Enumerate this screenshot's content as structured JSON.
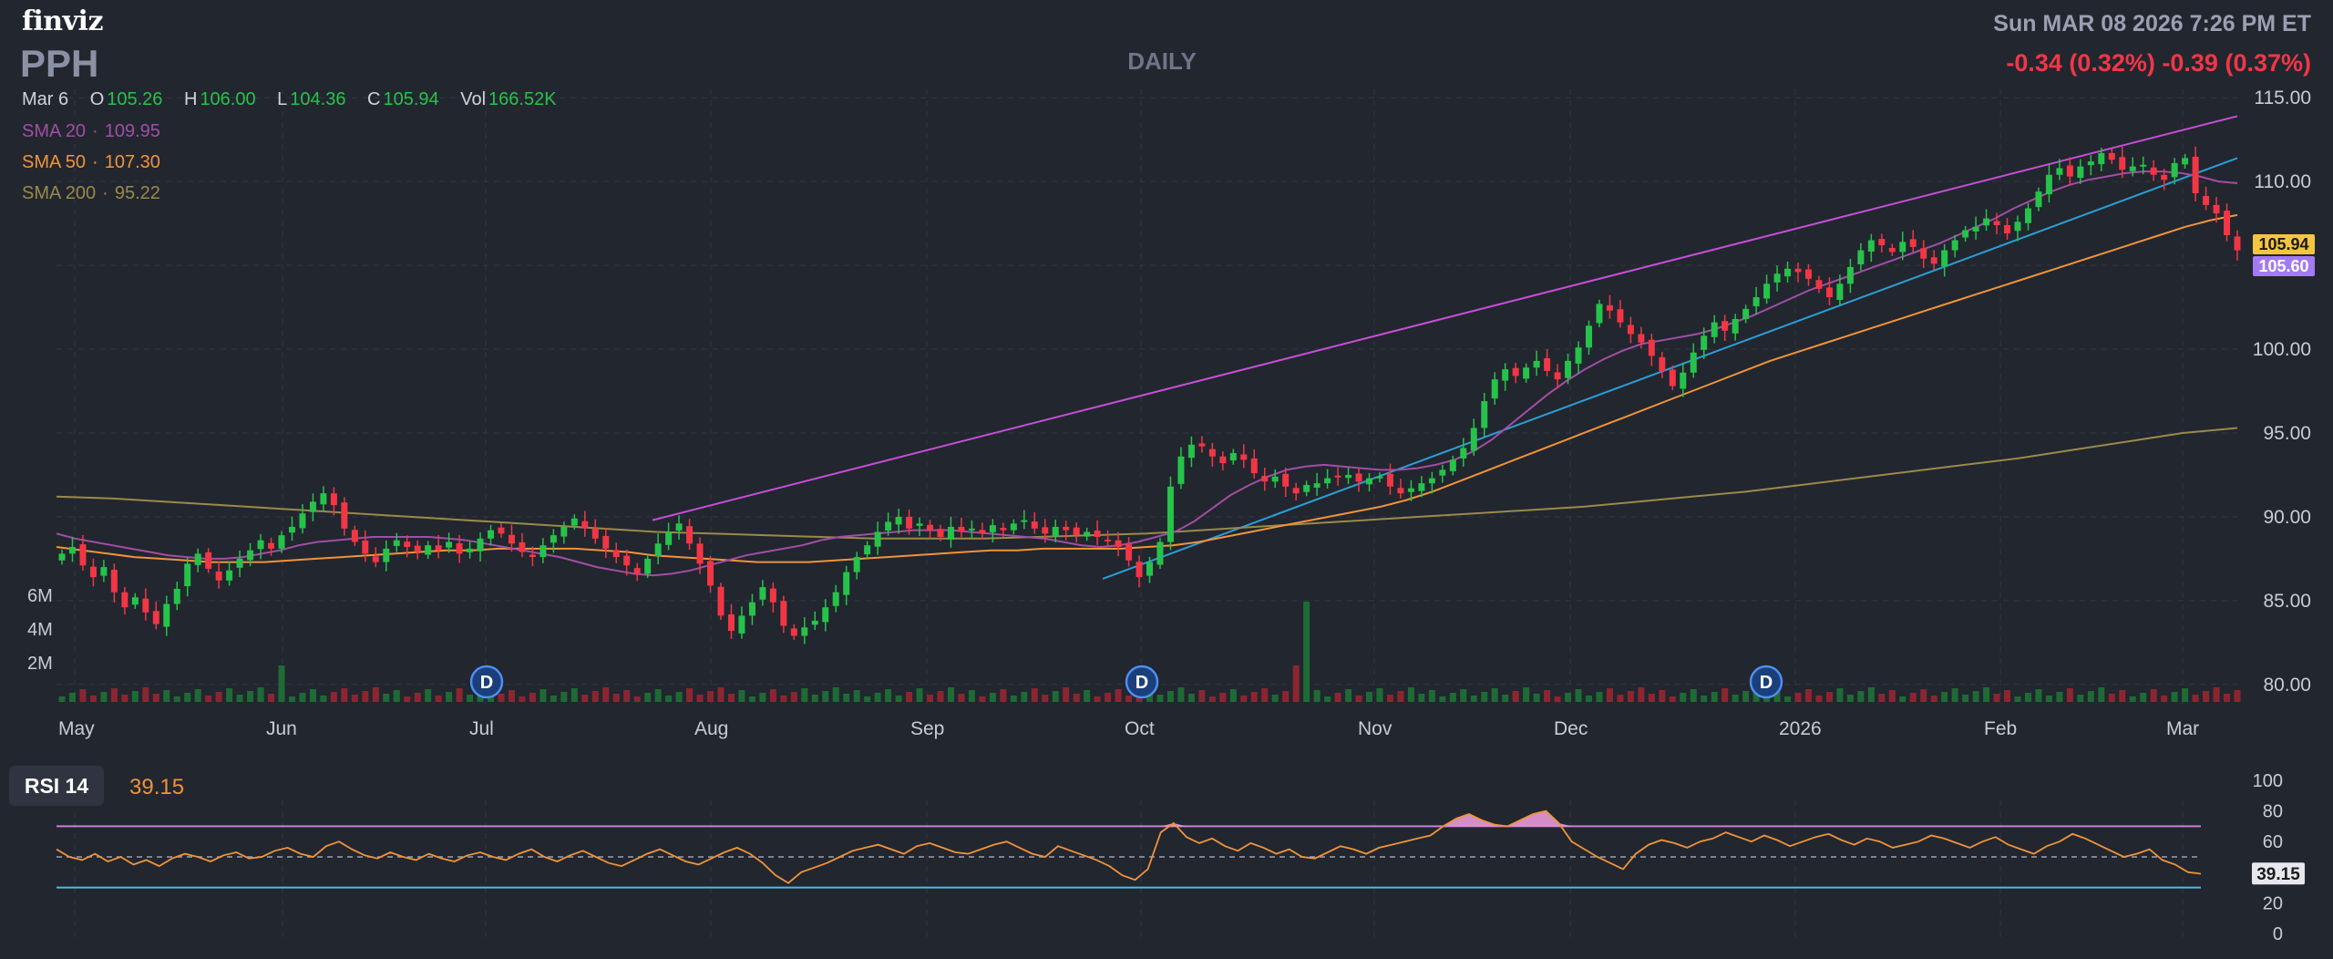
{
  "header": {
    "logo": "finviz",
    "ticker": "PPH",
    "period": "DAILY",
    "datetime": "Sun MAR 08 2026 7:26 PM ET",
    "change": "-0.34 (0.32%)  -0.39 (0.37%)"
  },
  "ohlc": {
    "date": "Mar 6",
    "open_label": "O",
    "open": "105.26",
    "high_label": "H",
    "high": "106.00",
    "low_label": "L",
    "low": "104.36",
    "close_label": "C",
    "close": "105.94",
    "vol_label": "Vol",
    "vol": "166.52K"
  },
  "sma": [
    {
      "label": "SMA 20",
      "value": "109.95",
      "color": "#a14ea6"
    },
    {
      "label": "SMA 50",
      "value": "107.30",
      "color": "#f0943a"
    },
    {
      "label": "SMA 200",
      "value": "95.22",
      "color": "#9a8a4a"
    }
  ],
  "price_tags": {
    "close": "105.94",
    "close_color": "#f5c542",
    "alt": "105.60",
    "alt_color": "#a37af5"
  },
  "volume_ticks": [
    "6M",
    "4M",
    "2M"
  ],
  "dividend_marker": "D",
  "rsi": {
    "label": "RSI 14",
    "value": "39.15",
    "ticks": [
      "100",
      "80",
      "60",
      "40",
      "20",
      "0"
    ],
    "overbought": 70,
    "oversold": 30
  },
  "colors": {
    "up": "#26c34a",
    "down": "#f23645",
    "volume_up": "#1e6b35",
    "volume_down": "#8b2630",
    "trend_upper": "#c74fd6",
    "trend_lower": "#2a9fd6",
    "rsi_line": "#f0943a"
  },
  "chart_data": {
    "type": "candlestick",
    "y_ticks": [
      "115.00",
      "110.00",
      "105.00",
      "100.00",
      "95.00",
      "90.00",
      "85.00",
      "80.00"
    ],
    "y_range": [
      79.5,
      115.5
    ],
    "x_labels": [
      "May",
      "Jun",
      "Jul",
      "Aug",
      "Sep",
      "Oct",
      "Nov",
      "Dec",
      "2026",
      "Feb",
      "Mar"
    ],
    "close_series": [
      87.8,
      88.2,
      87.1,
      86.4,
      87.0,
      85.5,
      84.6,
      85.2,
      84.3,
      83.6,
      84.8,
      85.7,
      87.2,
      87.8,
      86.9,
      86.2,
      86.8,
      87.5,
      88.0,
      88.6,
      88.1,
      88.9,
      89.4,
      90.2,
      90.9,
      91.4,
      90.7,
      89.3,
      88.5,
      87.8,
      87.3,
      88.1,
      88.6,
      88.2,
      87.9,
      88.3,
      88.0,
      88.5,
      87.8,
      88.1,
      88.7,
      89.2,
      89.0,
      88.4,
      87.9,
      87.6,
      88.3,
      88.9,
      89.4,
      89.9,
      89.3,
      88.7,
      88.1,
      87.6,
      87.1,
      86.6,
      87.5,
      88.4,
      89.1,
      89.6,
      88.4,
      87.2,
      85.9,
      84.1,
      83.2,
      84.1,
      84.9,
      85.8,
      84.9,
      83.5,
      82.9,
      83.4,
      83.8,
      84.6,
      85.5,
      86.7,
      87.6,
      88.3,
      89.1,
      89.7,
      90.0,
      89.3,
      89.6,
      89.2,
      88.8,
      89.4,
      89.1,
      89.3,
      89.0,
      89.5,
      89.2,
      89.6,
      89.8,
      89.3,
      89.0,
      89.4,
      89.2,
      88.9,
      89.1,
      88.8,
      88.6,
      88.2,
      87.4,
      86.4,
      87.3,
      88.5,
      91.8,
      93.6,
      94.3,
      94.2,
      93.6,
      93.2,
      93.8,
      93.4,
      92.6,
      92.1,
      92.4,
      91.8,
      91.4,
      91.9,
      92.0,
      92.3,
      92.4,
      92.5,
      92.1,
      92.3,
      92.4,
      91.8,
      91.4,
      91.7,
      92.0,
      92.3,
      92.8,
      93.4,
      94.1,
      95.3,
      96.9,
      98.2,
      98.8,
      98.4,
      98.9,
      99.3,
      98.7,
      98.2,
      99.3,
      100.1,
      101.4,
      102.7,
      102.3,
      101.6,
      100.9,
      100.4,
      99.6,
      98.7,
      97.8,
      98.6,
      99.8,
      100.8,
      101.6,
      101.1,
      101.8,
      102.4,
      103.1,
      103.9,
      104.5,
      104.8,
      104.6,
      104.2,
      103.6,
      103.1,
      103.9,
      104.9,
      105.9,
      106.5,
      106.2,
      105.8,
      106.4,
      106.1,
      105.4,
      105.1,
      105.9,
      106.5,
      107.1,
      107.3,
      107.8,
      107.4,
      106.9,
      107.6,
      108.4,
      109.4,
      110.4,
      110.8,
      110.3,
      110.9,
      111.2,
      111.7,
      111.3,
      110.7,
      110.9,
      111.0,
      110.4,
      110.1,
      111.1,
      111.4,
      109.3,
      108.6,
      108.1,
      106.8,
      105.9
    ],
    "sma20": [
      89.0,
      88.7,
      88.5,
      88.3,
      88.1,
      87.9,
      87.7,
      87.6,
      87.5,
      87.5,
      87.6,
      87.8,
      88.0,
      88.3,
      88.5,
      88.6,
      88.7,
      88.8,
      88.8,
      88.8,
      88.8,
      88.7,
      88.6,
      88.4,
      88.2,
      88.0,
      87.8,
      87.6,
      87.3,
      87.0,
      86.8,
      86.6,
      86.5,
      86.6,
      86.8,
      87.1,
      87.4,
      87.7,
      87.9,
      88.1,
      88.3,
      88.6,
      88.8,
      88.9,
      89.0,
      89.1,
      89.2,
      89.2,
      89.2,
      89.1,
      89.0,
      88.9,
      88.8,
      88.7,
      88.5,
      88.3,
      88.2,
      88.3,
      88.5,
      88.8,
      89.1,
      89.7,
      90.5,
      91.3,
      91.9,
      92.4,
      92.8,
      93.0,
      93.1,
      93.0,
      92.9,
      92.8,
      92.8,
      92.9,
      93.1,
      93.4,
      93.9,
      94.6,
      95.5,
      96.4,
      97.3,
      98.1,
      98.8,
      99.4,
      99.9,
      100.3,
      100.5,
      100.7,
      100.9,
      101.2,
      101.6,
      102.0,
      102.5,
      103.0,
      103.5,
      103.9,
      104.3,
      104.7,
      105.1,
      105.5,
      105.9,
      106.3,
      106.8,
      107.3,
      107.8,
      108.4,
      108.9,
      109.4,
      109.8,
      110.1,
      110.3,
      110.5,
      110.6,
      110.6,
      110.5,
      110.3,
      110.0,
      109.9
    ],
    "sma50": [
      88.2,
      88.0,
      87.8,
      87.6,
      87.5,
      87.4,
      87.3,
      87.3,
      87.3,
      87.4,
      87.5,
      87.6,
      87.7,
      87.8,
      87.9,
      88.0,
      88.0,
      88.1,
      88.1,
      88.1,
      88.1,
      88.0,
      87.9,
      87.7,
      87.6,
      87.5,
      87.4,
      87.3,
      87.3,
      87.3,
      87.4,
      87.5,
      87.6,
      87.7,
      87.8,
      87.9,
      88.0,
      88.0,
      88.1,
      88.1,
      88.1,
      88.1,
      88.2,
      88.3,
      88.5,
      88.8,
      89.1,
      89.4,
      89.7,
      90.0,
      90.3,
      90.6,
      91.0,
      91.5,
      92.1,
      92.7,
      93.3,
      93.9,
      94.5,
      95.1,
      95.7,
      96.3,
      96.9,
      97.5,
      98.1,
      98.7,
      99.3,
      99.8,
      100.3,
      100.8,
      101.3,
      101.8,
      102.3,
      102.8,
      103.3,
      103.8,
      104.3,
      104.8,
      105.3,
      105.8,
      106.3,
      106.8,
      107.3,
      107.7,
      108.0
    ],
    "sma200": [
      91.2,
      91.1,
      90.9,
      90.7,
      90.5,
      90.3,
      90.1,
      89.9,
      89.7,
      89.5,
      89.3,
      89.1,
      89.0,
      88.9,
      88.8,
      88.7,
      88.7,
      88.7,
      88.8,
      88.9,
      89.0,
      89.2,
      89.4,
      89.6,
      89.8,
      90.0,
      90.2,
      90.4,
      90.6,
      90.9,
      91.2,
      91.5,
      91.9,
      92.3,
      92.7,
      93.1,
      93.5,
      94.0,
      94.5,
      95.0,
      95.3
    ],
    "upper_channel": {
      "from": [
        "Jul 25",
        89.8
      ],
      "to": [
        "Mar 6",
        113.9
      ]
    },
    "lower_channel": {
      "from": [
        "Sep 29",
        86.3
      ],
      "to": [
        "Mar 6",
        111.4
      ]
    },
    "dividend_dates": [
      "Jun 30",
      "Sep 30",
      "Dec 29"
    ],
    "rsi_values": [
      55,
      50,
      48,
      52,
      47,
      50,
      45,
      48,
      44,
      49,
      52,
      50,
      47,
      51,
      53,
      49,
      50,
      54,
      56,
      52,
      50,
      57,
      60,
      55,
      51,
      49,
      53,
      50,
      48,
      52,
      49,
      47,
      51,
      53,
      50,
      48,
      52,
      55,
      50,
      47,
      51,
      54,
      50,
      46,
      44,
      48,
      52,
      55,
      51,
      47,
      45,
      49,
      53,
      56,
      52,
      46,
      38,
      33,
      40,
      43,
      46,
      50,
      54,
      56,
      58,
      55,
      52,
      57,
      59,
      56,
      53,
      52,
      55,
      58,
      60,
      56,
      52,
      50,
      57,
      54,
      51,
      48,
      44,
      38,
      35,
      42,
      66,
      72,
      63,
      59,
      62,
      57,
      54,
      59,
      56,
      52,
      55,
      50,
      49,
      53,
      57,
      55,
      52,
      56,
      58,
      60,
      62,
      64,
      70,
      75,
      78,
      74,
      71,
      70,
      74,
      78,
      80,
      72,
      60,
      55,
      50,
      46,
      42,
      52,
      58,
      61,
      59,
      56,
      60,
      62,
      66,
      63,
      60,
      64,
      61,
      57,
      60,
      63,
      65,
      61,
      58,
      62,
      60,
      56,
      58,
      60,
      64,
      62,
      59,
      56,
      60,
      63,
      58,
      55,
      52,
      57,
      60,
      65,
      62,
      58,
      54,
      50,
      52,
      55,
      48,
      45,
      40,
      39
    ]
  }
}
